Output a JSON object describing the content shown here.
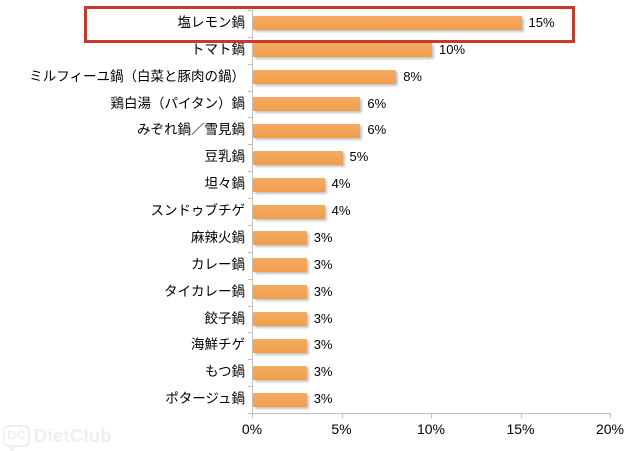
{
  "chart_data": {
    "type": "bar",
    "orientation": "horizontal",
    "title": "",
    "xlabel": "",
    "ylabel": "",
    "categories": [
      "塩レモン鍋",
      "トマト鍋",
      "ミルフィーユ鍋（白菜と豚肉の鍋）",
      "鶏白湯（パイタン）鍋",
      "みぞれ鍋／雪見鍋",
      "豆乳鍋",
      "坦々鍋",
      "スンドゥブチゲ",
      "麻辣火鍋",
      "カレー鍋",
      "タイカレー鍋",
      "餃子鍋",
      "海鮮チゲ",
      "もつ鍋",
      "ポタージュ鍋"
    ],
    "values": [
      15,
      10,
      8,
      6,
      6,
      5,
      4,
      4,
      3,
      3,
      3,
      3,
      3,
      3,
      3
    ],
    "value_labels": [
      "15%",
      "10%",
      "8%",
      "6%",
      "6%",
      "5%",
      "4%",
      "4%",
      "3%",
      "3%",
      "3%",
      "3%",
      "3%",
      "3%",
      "3%"
    ],
    "x_ticks": [
      "0%",
      "5%",
      "10%",
      "15%",
      "20%"
    ],
    "x_tick_values": [
      0,
      5,
      10,
      15,
      20
    ],
    "xlim": [
      0,
      20
    ],
    "grid": false,
    "legend": false,
    "bar_color_top": "#F5AB63",
    "bar_color_bottom": "#F09E4A",
    "axis_color": "#BFBFBF",
    "highlighted_category": "塩レモン鍋",
    "highlight_border_color": "#C8382C"
  },
  "watermark": {
    "logo": "DC",
    "text": "DietClub"
  }
}
